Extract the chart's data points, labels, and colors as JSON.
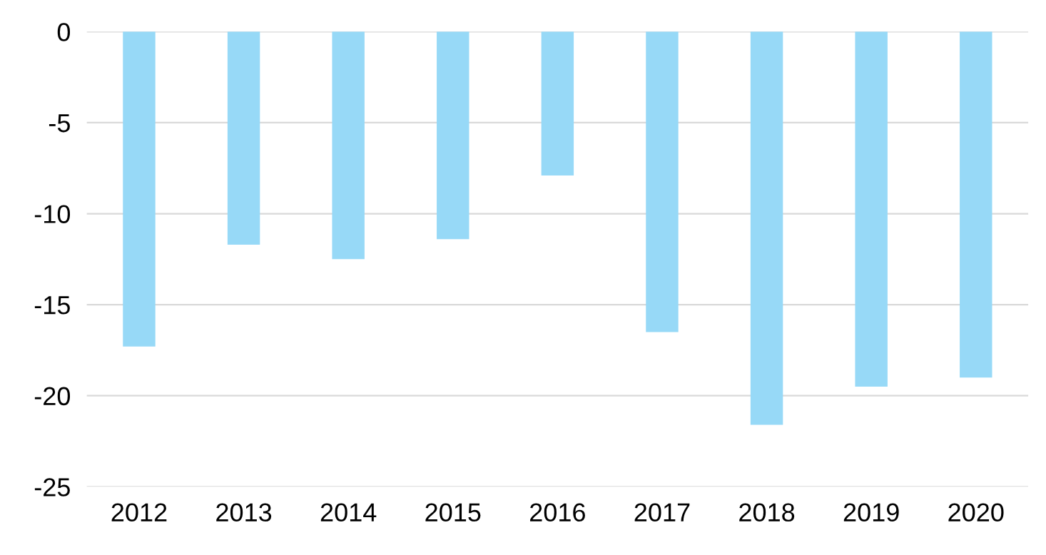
{
  "chart_data": {
    "type": "bar",
    "categories": [
      "2012",
      "2013",
      "2014",
      "2015",
      "2016",
      "2017",
      "2018",
      "2019",
      "2020"
    ],
    "values": [
      -17.3,
      -11.7,
      -12.5,
      -11.4,
      -7.9,
      -16.5,
      -21.6,
      -19.5,
      -19.0
    ],
    "color": "#97d9f7",
    "ylim": [
      -25,
      0
    ],
    "yticks": [
      -25,
      -20,
      -15,
      -10,
      -5,
      0
    ],
    "grid": "y"
  }
}
